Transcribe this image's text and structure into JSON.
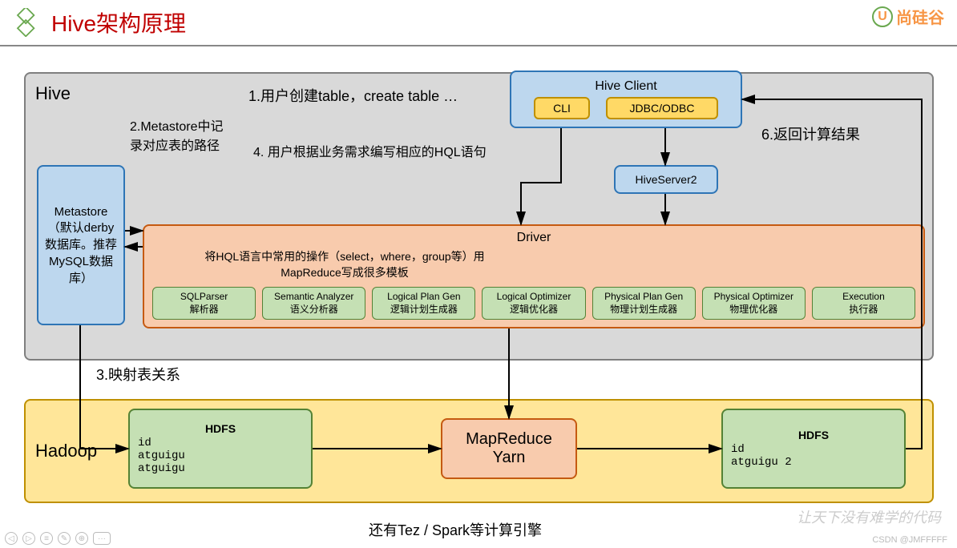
{
  "header": {
    "title": "Hive架构原理",
    "brand": "尚硅谷",
    "brand_letter": "U"
  },
  "hive_container": {
    "label": "Hive",
    "bg": "#d9d9d9",
    "border": "#7f7f7f"
  },
  "metastore": {
    "text": "Metastore（默认derby数据库。推荐MySQL数据库）",
    "bg": "#bdd7ee",
    "border": "#2e75b6"
  },
  "hive_client": {
    "title": "Hive Client",
    "bg": "#bdd7ee",
    "border": "#2e75b6",
    "cli": "CLI",
    "jdbc": "JDBC/ODBC",
    "btn_bg": "#ffd966",
    "btn_border": "#bf9000"
  },
  "hiveserver2": {
    "text": "HiveServer2",
    "bg": "#bdd7ee",
    "border": "#2e75b6"
  },
  "driver": {
    "title": "Driver",
    "desc": "将HQL语言中常用的操作（select，where，group等）用MapReduce写成很多模板",
    "bg": "#f8cbad",
    "border": "#c55a11",
    "subs": [
      {
        "t1": "SQLParser",
        "t2": "解析器"
      },
      {
        "t1": "Semantic Analyzer",
        "t2": "语义分析器"
      },
      {
        "t1": "Logical Plan Gen",
        "t2": "逻辑计划生成器"
      },
      {
        "t1": "Logical Optimizer",
        "t2": "逻辑优化器"
      },
      {
        "t1": "Physical Plan Gen",
        "t2": "物理计划生成器"
      },
      {
        "t1": "Physical Optimizer",
        "t2": "物理优化器"
      },
      {
        "t1": "Execution",
        "t2": "执行器"
      }
    ]
  },
  "hadoop_container": {
    "label": "Hadoop",
    "bg": "#ffe699",
    "border": "#bf9000"
  },
  "hdfs1": {
    "title": "HDFS",
    "lines": "id\natguigu\natguigu",
    "bg": "#c5e0b4",
    "border": "#548235"
  },
  "mapreduce": {
    "text": "MapReduce\nYarn",
    "bg": "#f8cbad",
    "border": "#c55a11"
  },
  "hdfs2": {
    "title": "HDFS",
    "lines": "id\natguigu 2",
    "bg": "#c5e0b4",
    "border": "#548235"
  },
  "annotations": {
    "step1": "1.用户创建table，create table …",
    "step2": "2.Metastore中记录对应表的路径",
    "step3": "3.映射表关系",
    "step4": "4. 用户根据业务需求编写相应的HQL语句",
    "step6": "6.返回计算结果",
    "footer": "还有Tez / Spark等计算引擎"
  },
  "watermark": {
    "csdn": "CSDN @JMFFFFF",
    "slogan": "让天下没有难学的代码"
  },
  "colors": {
    "arrow": "#000000",
    "title_color": "#c00000"
  }
}
